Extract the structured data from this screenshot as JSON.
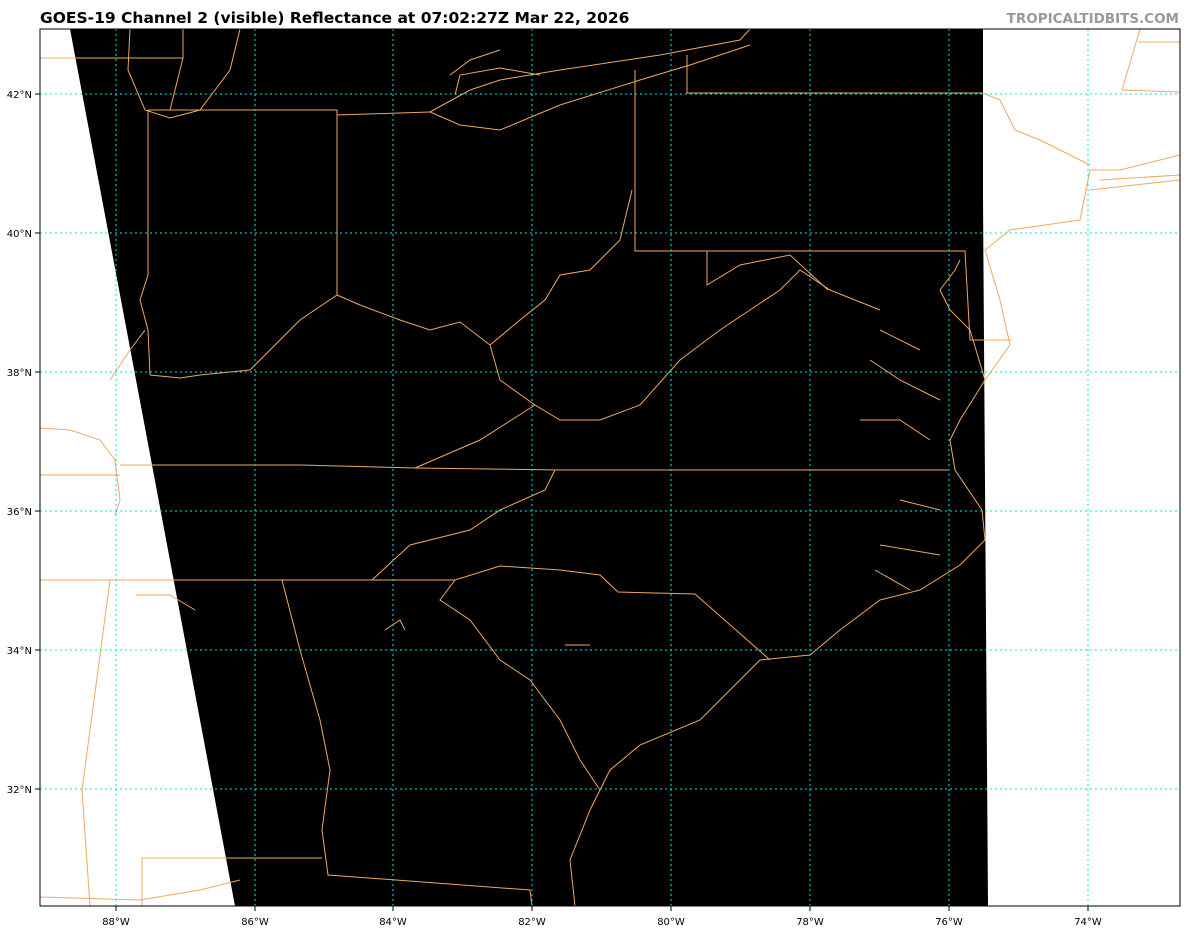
{
  "title": "GOES-19 Channel 2 (visible) Reflectance at 07:02:27Z Mar 22, 2026",
  "watermark": "TROPICALTIDBITS.COM",
  "map": {
    "product": "GOES-19 Channel 2 visible reflectance",
    "extent": {
      "lon": [
        -89.1,
        -72.7
      ],
      "lat": [
        30.3,
        42.9
      ]
    },
    "colors": {
      "background": "#ffffff",
      "imagery": "#000000",
      "borders": "#f0a860",
      "gridlines": "#00e5e5"
    },
    "lon_ticks": [
      "88°W",
      "86°W",
      "84°W",
      "82°W",
      "80°W",
      "78°W",
      "76°W",
      "74°W"
    ],
    "lat_ticks": [
      "42°N",
      "40°N",
      "38°N",
      "36°N",
      "34°N",
      "32°N"
    ]
  }
}
